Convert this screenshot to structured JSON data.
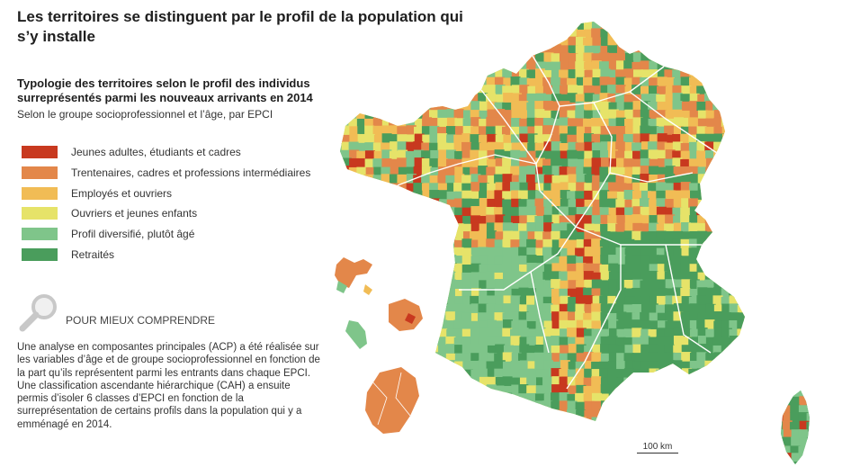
{
  "title": "Les territoires se distinguent par le profil de la population qui s’y installe",
  "subtitle": "Typologie des territoires selon le profil des individus surreprésentés parmi les nouveaux arrivants en 2014",
  "subnote": "Selon le groupe socioprofessionnel et l’âge, par EPCI",
  "legend": [
    {
      "label": "Jeunes adultes, étudiants et cadres",
      "color": "#c8391f"
    },
    {
      "label": "Trentenaires, cadres et professions intermédiaires",
      "color": "#e3874a"
    },
    {
      "label": "Employés et ouvriers",
      "color": "#f1bc55"
    },
    {
      "label": "Ouvriers et jeunes enfants",
      "color": "#e6e369"
    },
    {
      "label": "Profil diversifié, plutôt âgé",
      "color": "#7fc58a"
    },
    {
      "label": "Retraités",
      "color": "#4a9d5c"
    }
  ],
  "info": {
    "heading": "POUR MIEUX COMPRENDRE",
    "text": "Une analyse en composantes principales (ACP) a été réalisée sur les variables d’âge et de groupe socioprofessionnel en fonction de la part qu’ils représentent parmi les entrants dans chaque EPCI. Une classification ascendante hiérarchique (CAH) a ensuite permis d’isoler 6 classes d’EPCI en fonction de la surreprésentation de certains profils dans la population qui y a emménagé en 2014.",
    "icon": "magnifier-icon"
  },
  "scale": {
    "label": "100 km"
  }
}
